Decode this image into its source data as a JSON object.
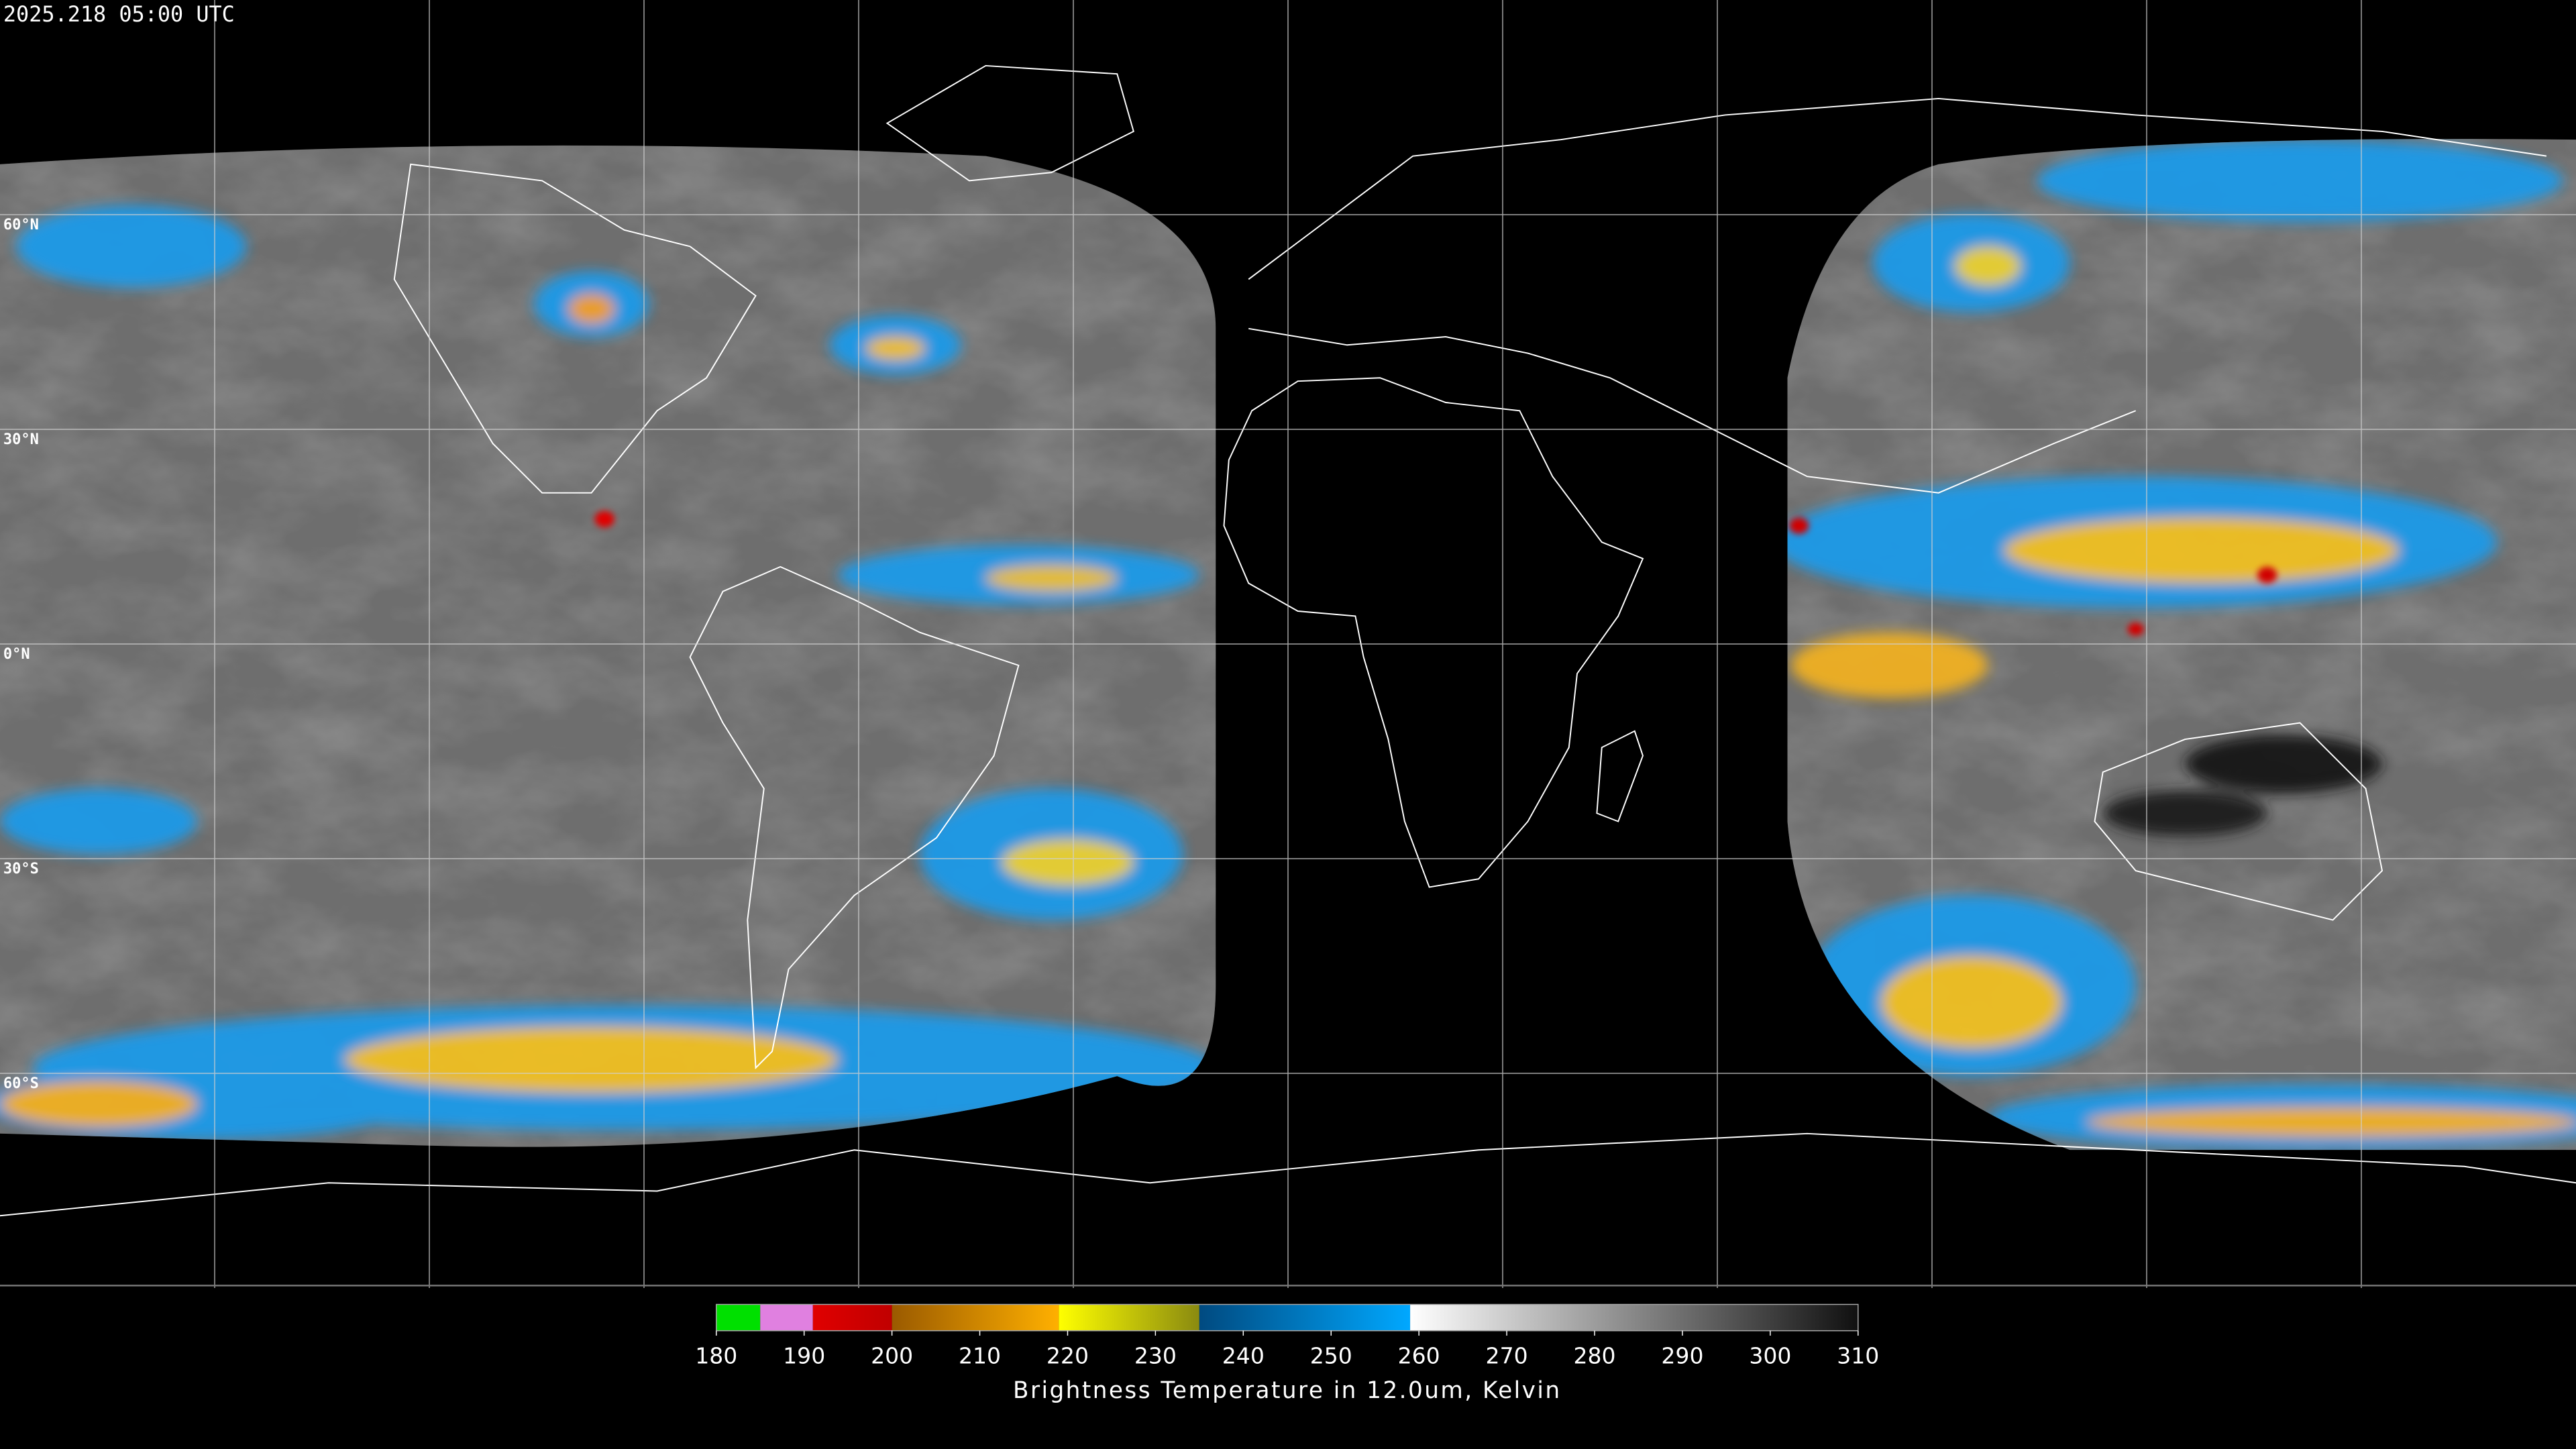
{
  "header": {
    "timestamp": "2025.218 05:00 UTC"
  },
  "map": {
    "latitude_labels": [
      "60°N",
      "30°N",
      "0°N",
      "30°S",
      "60°S"
    ]
  },
  "colorbar": {
    "ticks": [
      180,
      190,
      200,
      210,
      220,
      230,
      240,
      250,
      260,
      270,
      280,
      290,
      300,
      310
    ],
    "label": "Brightness Temperature in 12.0um, Kelvin",
    "segments": [
      {
        "from": 180,
        "to": 185,
        "colors": [
          "#00e000",
          "#00e000"
        ]
      },
      {
        "from": 185,
        "to": 191,
        "colors": [
          "#e080e0",
          "#e080e0"
        ]
      },
      {
        "from": 191,
        "to": 200,
        "colors": [
          "#e00000",
          "#c00000"
        ]
      },
      {
        "from": 200,
        "to": 219,
        "colors": [
          "#9a5a00",
          "#ffb000"
        ]
      },
      {
        "from": 219,
        "to": 235,
        "colors": [
          "#ffff00",
          "#8a8a10"
        ]
      },
      {
        "from": 235,
        "to": 259,
        "colors": [
          "#004a80",
          "#00a8ff"
        ]
      },
      {
        "from": 259,
        "to": 310,
        "colors": [
          "#ffffff",
          "#101010"
        ]
      }
    ]
  }
}
